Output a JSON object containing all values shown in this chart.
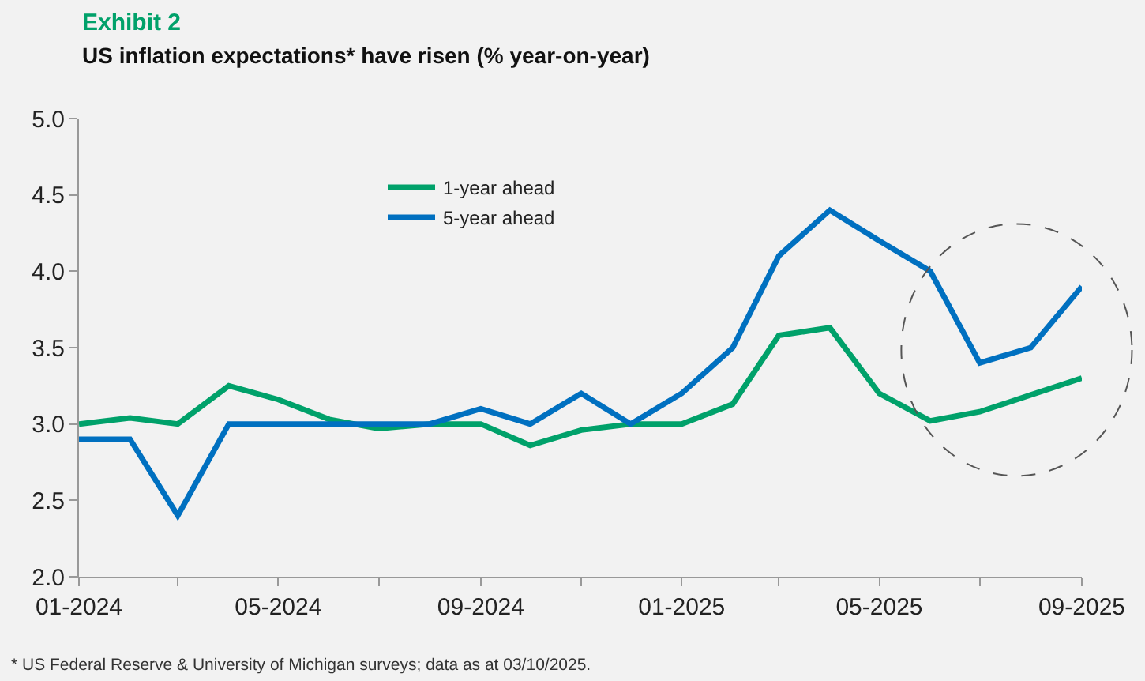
{
  "chart_data": {
    "type": "line",
    "subtitle": "Exhibit 2",
    "title": "US inflation expectations* have risen (% year-on-year)",
    "x": [
      "2024-01",
      "2024-02",
      "2024-03",
      "2024-04",
      "2024-05",
      "2024-06",
      "2024-07",
      "2024-08",
      "2024-09",
      "2024-10",
      "2024-11",
      "2024-12",
      "2025-01",
      "2025-02",
      "2025-03",
      "2025-04",
      "2025-05",
      "2025-06",
      "2025-07",
      "2025-08",
      "2025-09"
    ],
    "series": [
      {
        "name": "1-year ahead",
        "color": "#00a16a",
        "values": [
          3.0,
          3.04,
          3.0,
          3.25,
          3.16,
          3.03,
          2.97,
          3.0,
          3.0,
          2.86,
          2.96,
          3.0,
          3.0,
          3.13,
          3.58,
          3.63,
          3.2,
          3.02,
          3.08,
          3.19,
          3.3
        ]
      },
      {
        "name": "5-year ahead",
        "color": "#0070c0",
        "values": [
          2.9,
          2.9,
          2.4,
          3.0,
          3.0,
          3.0,
          3.0,
          3.0,
          3.1,
          3.0,
          3.2,
          3.0,
          3.2,
          3.5,
          4.1,
          4.4,
          4.2,
          4.0,
          3.4,
          3.5,
          3.9
        ]
      }
    ],
    "xlim": [
      "2024-01",
      "2025-09"
    ],
    "xticks": [
      {
        "value": "2024-01",
        "label": "01-2024"
      },
      {
        "value": "2024-03",
        "label": null
      },
      {
        "value": "2024-05",
        "label": "05-2024"
      },
      {
        "value": "2024-07",
        "label": null
      },
      {
        "value": "2024-09",
        "label": "09-2024"
      },
      {
        "value": "2024-11",
        "label": null
      },
      {
        "value": "2025-01",
        "label": "01-2025"
      },
      {
        "value": "2025-03",
        "label": null
      },
      {
        "value": "2025-05",
        "label": "05-2025"
      },
      {
        "value": "2025-07",
        "label": null
      },
      {
        "value": "2025-09",
        "label": "09-2025"
      }
    ],
    "ylim": [
      2.0,
      5.0
    ],
    "yticks": [
      {
        "value": 2.0,
        "label": "2.0"
      },
      {
        "value": 2.5,
        "label": "2.5"
      },
      {
        "value": 3.0,
        "label": "3.0"
      },
      {
        "value": 3.5,
        "label": "3.5"
      },
      {
        "value": 4.0,
        "label": "4.0"
      },
      {
        "value": 4.5,
        "label": "4.5"
      },
      {
        "value": 5.0,
        "label": "5.0"
      }
    ],
    "grid": false,
    "legend": "top left",
    "marker": "none",
    "line_style": "solid",
    "annotations": [
      "* US Federal Reserve & University of Michigan surveys; data as at 03/10/2025."
    ]
  }
}
